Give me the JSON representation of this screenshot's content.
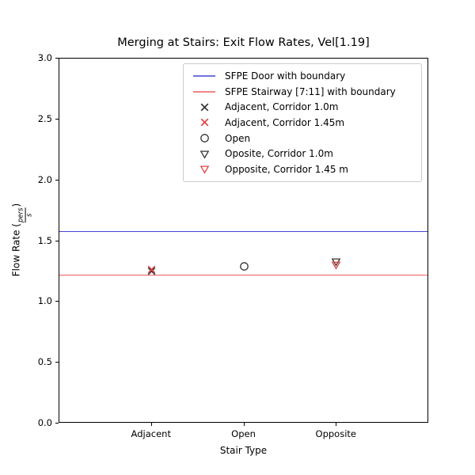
{
  "figure": {
    "ylabel_parts": {
      "prefix": "Flow Rate (",
      "numerator": "pers",
      "denominator": "s",
      "suffix": ")"
    }
  },
  "chart_data": {
    "type": "scatter",
    "title": "Merging at Stairs: Exit Flow Rates, Vel[1.19]",
    "xlabel": "Stair Type",
    "ylabel": "Flow Rate (pers/s)",
    "categories": [
      "Adjacent",
      "Open",
      "Opposite"
    ],
    "category_positions": [
      0,
      1,
      2
    ],
    "xlim": [
      -1,
      3
    ],
    "ylim": [
      0,
      3
    ],
    "yticks": [
      0.0,
      0.5,
      1.0,
      1.5,
      2.0,
      2.5,
      3.0
    ],
    "ytick_labels": [
      "0.0",
      "0.5",
      "1.0",
      "1.5",
      "2.0",
      "2.5",
      "3.0"
    ],
    "grid": false,
    "legend_position": "upper right",
    "axis_color": "#000000",
    "hlines": [
      {
        "label": "SFPE Door with boundary",
        "y": 1.58,
        "color": "#4545d2"
      },
      {
        "label": "SFPE Stairway [7:11] with boundary",
        "y": 1.22,
        "color": "#ec5f5f"
      }
    ],
    "series": [
      {
        "name": "Adjacent, Corridor 1.0m",
        "marker": "x",
        "color": "#333333",
        "category": "Adjacent",
        "xi": 0,
        "y": 1.25
      },
      {
        "name": "Adjacent, Corridor 1.45m",
        "marker": "x",
        "color": "#e04343",
        "category": "Adjacent",
        "xi": 0,
        "y": 1.26
      },
      {
        "name": "Open",
        "marker": "circle",
        "color": "#333333",
        "category": "Open",
        "xi": 1,
        "y": 1.29
      },
      {
        "name": "Oposite, Corridor 1.0m",
        "marker": "triangle-down",
        "color": "#333333",
        "category": "Opposite",
        "xi": 2,
        "y": 1.33
      },
      {
        "name": "Opposite, Corridor 1.45 m",
        "marker": "triangle-down",
        "color": "#e04343",
        "category": "Opposite",
        "xi": 2,
        "y": 1.3
      }
    ]
  }
}
